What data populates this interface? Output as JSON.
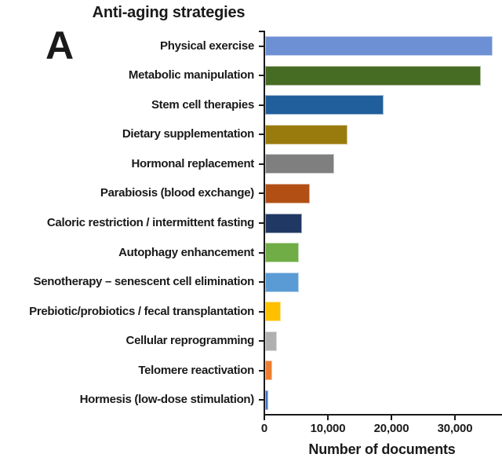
{
  "figure": {
    "panel_label": "A",
    "background_color": "#ffffff",
    "text_color": "#1a1a1a",
    "axis_color": "#1a1a1a"
  },
  "chart_data": {
    "type": "bar",
    "orientation": "horizontal",
    "title": "Anti-aging strategies",
    "xlabel": "Number of documents",
    "ylabel": "",
    "xlim": [
      0,
      37500
    ],
    "grid": false,
    "legend": false,
    "xticks": [
      {
        "value": 0,
        "label": "0"
      },
      {
        "value": 10000,
        "label": "10,000"
      },
      {
        "value": 20000,
        "label": "20,000"
      },
      {
        "value": 30000,
        "label": "30,000"
      }
    ],
    "bars": [
      {
        "label": "Physical exercise",
        "value": 35800,
        "color": "#6d8fd4"
      },
      {
        "label": "Metabolic manipulation",
        "value": 34000,
        "color": "#466b22"
      },
      {
        "label": "Stem cell therapies",
        "value": 18600,
        "color": "#215f9c"
      },
      {
        "label": "Dietary supplementation",
        "value": 13000,
        "color": "#997a0d"
      },
      {
        "label": "Hormonal replacement",
        "value": 10900,
        "color": "#7f7f7f"
      },
      {
        "label": "Parabiosis (blood exchange)",
        "value": 7000,
        "color": "#b24f14"
      },
      {
        "label": "Caloric restriction / intermittent fasting",
        "value": 5800,
        "color": "#203864"
      },
      {
        "label": "Autophagy enhancement",
        "value": 5300,
        "color": "#70ad47"
      },
      {
        "label": "Senotherapy – senescent cell elimination",
        "value": 5300,
        "color": "#5b9bd5"
      },
      {
        "label": "Prebiotic/probiotics / fecal transplantation",
        "value": 2500,
        "color": "#ffc000"
      },
      {
        "label": "Cellular reprogramming",
        "value": 1900,
        "color": "#b0b0b0"
      },
      {
        "label": "Telomere reactivation",
        "value": 1100,
        "color": "#ed7d31"
      },
      {
        "label": "Hormesis (low-dose stimulation)",
        "value": 500,
        "color": "#4472c4"
      }
    ]
  }
}
